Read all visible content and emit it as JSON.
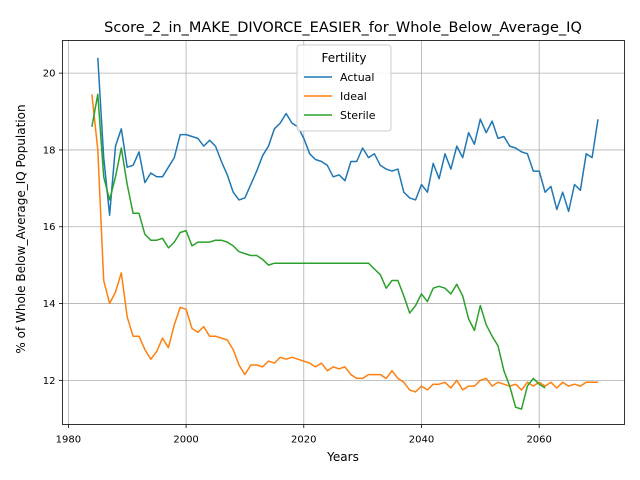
{
  "chart_data": {
    "type": "line",
    "title": "Score_2_in_MAKE_DIVORCE_EASIER_for_Whole_Below_Average_IQ",
    "xlabel": "Years",
    "ylabel": "% of Whole Below_Average_IQ Population",
    "xlim": [
      1979,
      2074.5
    ],
    "ylim": [
      10.85,
      20.85
    ],
    "x_ticks": [
      1980,
      2000,
      2020,
      2040,
      2060
    ],
    "y_ticks": [
      12,
      14,
      16,
      18,
      20
    ],
    "grid": "on, major ticks",
    "legend": {
      "title": "Fertility",
      "placement": "upper center"
    },
    "x": [
      1984,
      1985,
      1986,
      1987,
      1988,
      1989,
      1990,
      1991,
      1992,
      1993,
      1994,
      1995,
      1996,
      1997,
      1998,
      1999,
      2000,
      2001,
      2002,
      2003,
      2004,
      2005,
      2006,
      2007,
      2008,
      2009,
      2010,
      2011,
      2012,
      2013,
      2014,
      2015,
      2016,
      2017,
      2018,
      2019,
      2020,
      2021,
      2022,
      2023,
      2024,
      2025,
      2026,
      2027,
      2028,
      2029,
      2030,
      2031,
      2032,
      2033,
      2034,
      2035,
      2036,
      2037,
      2038,
      2039,
      2040,
      2041,
      2042,
      2043,
      2044,
      2045,
      2046,
      2047,
      2048,
      2049,
      2050,
      2051,
      2052,
      2053,
      2054,
      2055,
      2056,
      2057,
      2058,
      2059,
      2060,
      2061,
      2062,
      2063,
      2064,
      2065,
      2066,
      2067,
      2068,
      2069,
      2070
    ],
    "series": [
      {
        "name": "Actual",
        "color": "#1f77b4",
        "values": [
          null,
          20.4,
          17.8,
          16.3,
          18.1,
          18.55,
          17.55,
          17.6,
          17.95,
          17.15,
          17.4,
          17.3,
          17.3,
          17.55,
          17.8,
          18.4,
          18.4,
          18.35,
          18.3,
          18.1,
          18.25,
          18.1,
          17.7,
          17.35,
          16.9,
          16.7,
          16.75,
          17.1,
          17.45,
          17.85,
          18.1,
          18.55,
          18.7,
          18.95,
          18.7,
          18.6,
          18.3,
          17.9,
          17.75,
          17.7,
          17.6,
          17.3,
          17.35,
          17.2,
          17.7,
          17.7,
          18.05,
          17.8,
          17.9,
          17.6,
          17.5,
          17.45,
          17.5,
          16.9,
          16.75,
          16.7,
          17.1,
          16.9,
          17.65,
          17.25,
          17.9,
          17.5,
          18.1,
          17.8,
          18.45,
          18.15,
          18.8,
          18.45,
          18.75,
          18.3,
          18.35,
          18.1,
          18.05,
          17.95,
          17.9,
          17.45,
          17.45,
          16.9,
          17.05,
          16.45,
          16.9,
          16.4,
          17.1,
          16.95,
          17.9,
          17.8,
          18.8
        ]
      },
      {
        "name": "Ideal",
        "color": "#ff7f0e",
        "values": [
          19.45,
          18.0,
          14.6,
          14.0,
          14.3,
          14.8,
          13.65,
          13.15,
          13.15,
          12.8,
          12.55,
          12.75,
          13.1,
          12.85,
          13.45,
          13.9,
          13.85,
          13.35,
          13.25,
          13.4,
          13.15,
          13.15,
          13.1,
          13.05,
          12.8,
          12.4,
          12.15,
          12.4,
          12.4,
          12.35,
          12.5,
          12.45,
          12.6,
          12.55,
          12.6,
          12.55,
          12.5,
          12.45,
          12.35,
          12.45,
          12.25,
          12.35,
          12.3,
          12.35,
          12.15,
          12.05,
          12.05,
          12.15,
          12.15,
          12.15,
          12.05,
          12.25,
          12.05,
          11.95,
          11.75,
          11.7,
          11.85,
          11.75,
          11.9,
          11.9,
          11.95,
          11.8,
          12.0,
          11.75,
          11.85,
          11.85,
          12.0,
          12.05,
          11.85,
          11.95,
          11.9,
          11.85,
          11.9,
          11.75,
          11.95,
          11.85,
          11.95,
          11.85,
          11.95,
          11.8,
          11.95,
          11.85,
          11.9,
          11.85,
          11.95,
          11.95,
          11.95
        ]
      },
      {
        "name": "Sterile",
        "color": "#2ca02c",
        "values": [
          18.6,
          19.45,
          17.3,
          16.7,
          17.3,
          18.05,
          17.1,
          16.35,
          16.35,
          15.8,
          15.65,
          15.65,
          15.7,
          15.45,
          15.6,
          15.85,
          15.9,
          15.5,
          15.6,
          15.6,
          15.6,
          15.65,
          15.65,
          15.6,
          15.5,
          15.35,
          15.3,
          15.25,
          15.25,
          15.15,
          15.0,
          15.05,
          15.05,
          15.05,
          15.05,
          15.05,
          15.05,
          15.05,
          15.05,
          15.05,
          15.05,
          15.05,
          15.05,
          15.05,
          15.05,
          15.05,
          15.05,
          15.05,
          14.9,
          14.75,
          14.4,
          14.6,
          14.6,
          14.2,
          13.75,
          13.95,
          14.25,
          14.05,
          14.4,
          14.45,
          14.4,
          14.25,
          14.5,
          14.2,
          13.6,
          13.3,
          13.95,
          13.45,
          13.15,
          12.9,
          12.25,
          11.85,
          11.3,
          11.25,
          11.85,
          12.05,
          11.9,
          11.8,
          null,
          null,
          null,
          null,
          null,
          null,
          null,
          null,
          null
        ]
      }
    ]
  }
}
